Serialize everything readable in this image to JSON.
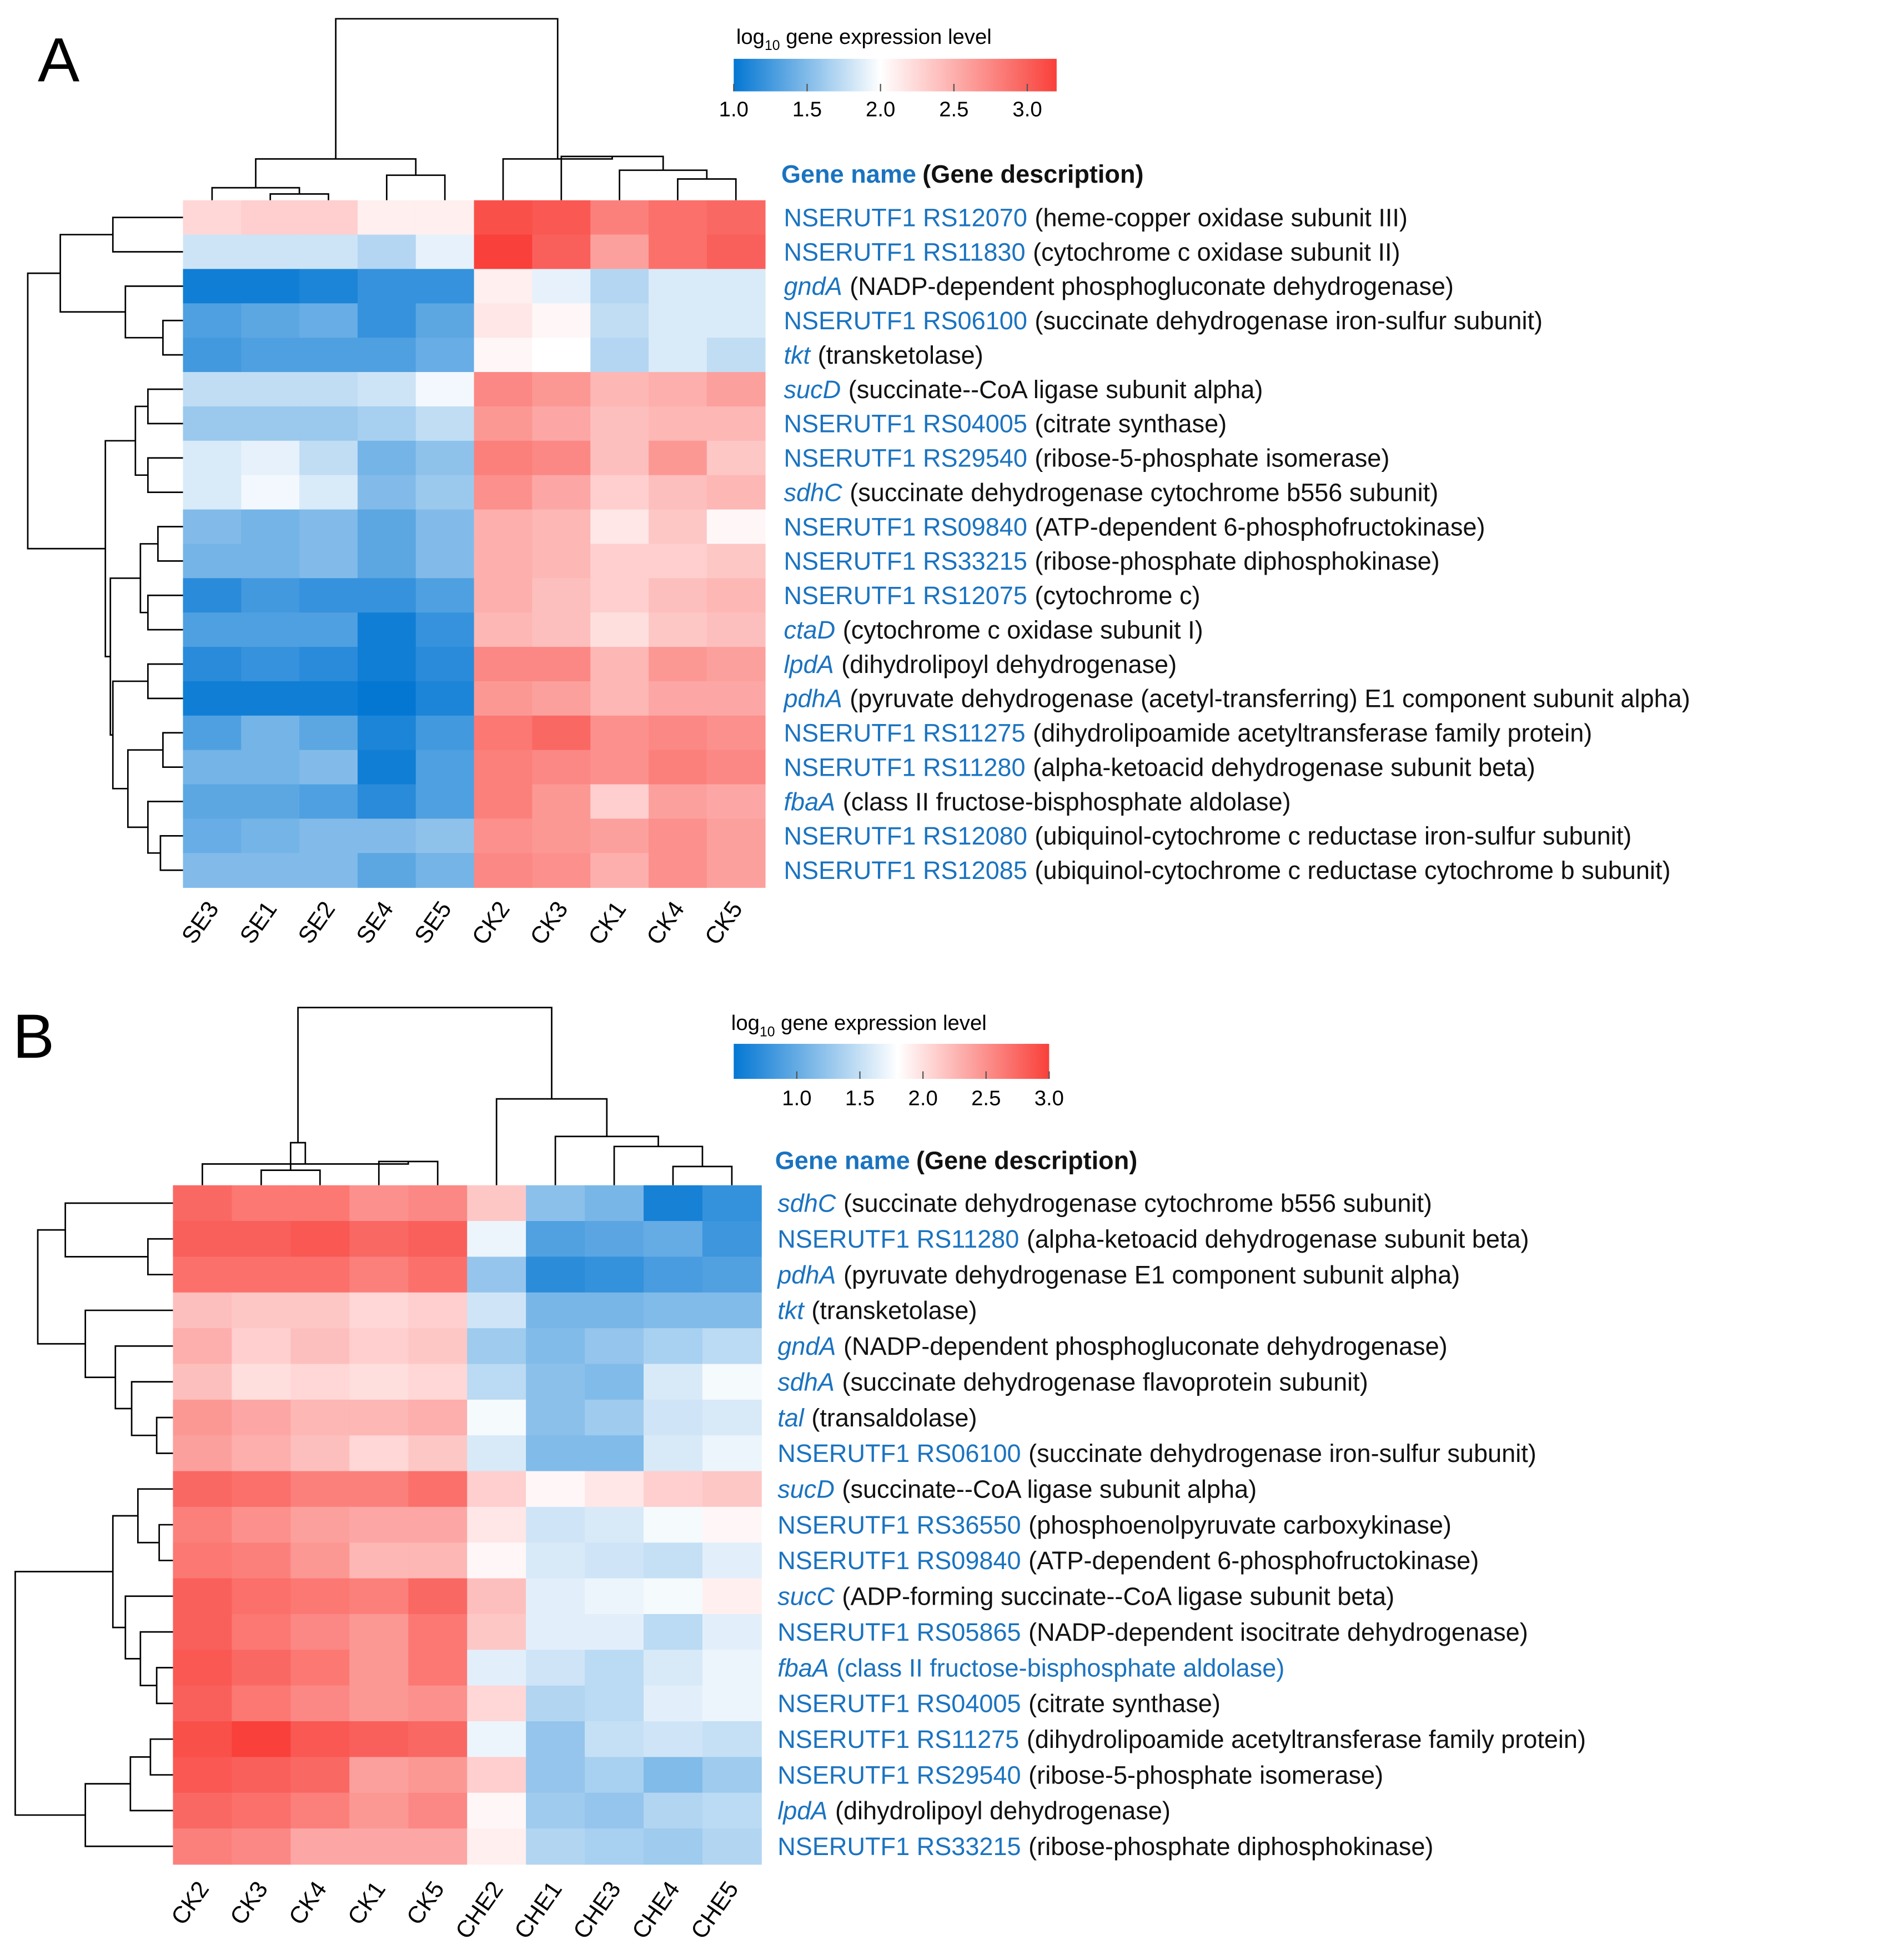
{
  "colors": {
    "low": "#0477d3",
    "mid": "#ffffff",
    "high": "#f9403a",
    "gene_name": "#1a73c0",
    "description": "#111111",
    "tree": "#000000"
  },
  "chart_data": [
    {
      "type": "heatmap",
      "panel_label": "A",
      "legend_title": "log10 gene expression level",
      "legend_title_parts": {
        "base": "log",
        "sub": "10",
        "rest": " gene expression level"
      },
      "legend_range": [
        1.0,
        3.2
      ],
      "legend_mid": 2.0,
      "legend_ticks": [
        1.0,
        1.5,
        2.0,
        2.5,
        3.0
      ],
      "legend_tick_labels": [
        "1.0",
        "1.5",
        "2.0",
        "2.5",
        "3.0"
      ],
      "header": {
        "name": "Gene name",
        "desc": "(Gene description)"
      },
      "columns": [
        "SE3",
        "SE1",
        "SE2",
        "SE4",
        "SE5",
        "CK2",
        "CK3",
        "CK1",
        "CK4",
        "CK5"
      ],
      "rows": [
        {
          "name": "NSERUTF1 RS12070",
          "desc": "(heme-copper oxidase subunit III)",
          "italic": false
        },
        {
          "name": "NSERUTF1 RS11830",
          "desc": "(cytochrome c oxidase subunit II)",
          "italic": false
        },
        {
          "name": "gndA",
          "desc": "(NADP-dependent phosphogluconate dehydrogenase)",
          "italic": true
        },
        {
          "name": "NSERUTF1 RS06100",
          "desc": "(succinate dehydrogenase iron-sulfur subunit)",
          "italic": false
        },
        {
          "name": "tkt",
          "desc": "(transketolase)",
          "italic": true
        },
        {
          "name": "sucD",
          "desc": "(succinate--CoA ligase subunit alpha)",
          "italic": true
        },
        {
          "name": "NSERUTF1 RS04005",
          "desc": "(citrate synthase)",
          "italic": false
        },
        {
          "name": "NSERUTF1 RS29540",
          "desc": "(ribose-5-phosphate isomerase)",
          "italic": false
        },
        {
          "name": "sdhC",
          "desc": "(succinate dehydrogenase cytochrome b556 subunit)",
          "italic": true
        },
        {
          "name": "NSERUTF1 RS09840",
          "desc": "(ATP-dependent 6-phosphofructokinase)",
          "italic": false
        },
        {
          "name": "NSERUTF1 RS33215",
          "desc": "(ribose-phosphate diphosphokinase)",
          "italic": false
        },
        {
          "name": "NSERUTF1 RS12075",
          "desc": "(cytochrome c)",
          "italic": false
        },
        {
          "name": "ctaD",
          "desc": "(cytochrome c oxidase subunit I)",
          "italic": true
        },
        {
          "name": "lpdA",
          "desc": "(dihydrolipoyl dehydrogenase)",
          "italic": true
        },
        {
          "name": "pdhA",
          "desc": "(pyruvate dehydrogenase (acetyl-transferring) E1 component subunit alpha)",
          "italic": true
        },
        {
          "name": "NSERUTF1 RS11275",
          "desc": "(dihydrolipoamide acetyltransferase family protein)",
          "italic": false
        },
        {
          "name": "NSERUTF1 RS11280",
          "desc": "(alpha-ketoacid dehydrogenase subunit beta)",
          "italic": false
        },
        {
          "name": "fbaA",
          "desc": "(class II fructose-bisphosphate aldolase)",
          "italic": true
        },
        {
          "name": "NSERUTF1 RS12080",
          "desc": "(ubiquinol-cytochrome c reductase iron-sulfur subunit)",
          "italic": false
        },
        {
          "name": "NSERUTF1 RS12085",
          "desc": "(ubiquinol-cytochrome c reductase cytochrome b subunit)",
          "italic": false
        }
      ],
      "values": [
        [
          2.25,
          2.3,
          2.3,
          2.1,
          2.1,
          3.1,
          3.05,
          2.8,
          2.9,
          2.95
        ],
        [
          1.8,
          1.8,
          1.8,
          1.7,
          1.9,
          3.2,
          3.0,
          2.6,
          2.9,
          3.0
        ],
        [
          1.05,
          1.05,
          1.1,
          1.2,
          1.2,
          2.1,
          1.9,
          1.7,
          1.85,
          1.85
        ],
        [
          1.3,
          1.35,
          1.4,
          1.2,
          1.35,
          2.15,
          2.05,
          1.75,
          1.85,
          1.85
        ],
        [
          1.25,
          1.3,
          1.3,
          1.3,
          1.4,
          2.05,
          2.0,
          1.7,
          1.85,
          1.75
        ],
        [
          1.75,
          1.75,
          1.75,
          1.8,
          1.95,
          2.75,
          2.65,
          2.45,
          2.5,
          2.6
        ],
        [
          1.6,
          1.6,
          1.6,
          1.65,
          1.75,
          2.65,
          2.55,
          2.4,
          2.45,
          2.45
        ],
        [
          1.85,
          1.9,
          1.75,
          1.45,
          1.55,
          2.8,
          2.75,
          2.4,
          2.65,
          2.35
        ],
        [
          1.85,
          1.95,
          1.85,
          1.5,
          1.6,
          2.7,
          2.55,
          2.3,
          2.4,
          2.45
        ],
        [
          1.5,
          1.45,
          1.5,
          1.35,
          1.5,
          2.5,
          2.45,
          2.15,
          2.35,
          2.05
        ],
        [
          1.45,
          1.45,
          1.5,
          1.35,
          1.5,
          2.5,
          2.45,
          2.3,
          2.3,
          2.35
        ],
        [
          1.15,
          1.25,
          1.2,
          1.2,
          1.3,
          2.5,
          2.4,
          2.3,
          2.4,
          2.45
        ],
        [
          1.3,
          1.3,
          1.3,
          1.05,
          1.2,
          2.45,
          2.4,
          2.2,
          2.35,
          2.4
        ],
        [
          1.15,
          1.2,
          1.15,
          1.05,
          1.15,
          2.75,
          2.75,
          2.45,
          2.65,
          2.6
        ],
        [
          1.05,
          1.05,
          1.05,
          0.95,
          1.1,
          2.65,
          2.6,
          2.45,
          2.55,
          2.55
        ],
        [
          1.3,
          1.45,
          1.35,
          1.1,
          1.25,
          2.85,
          2.95,
          2.7,
          2.75,
          2.7
        ],
        [
          1.45,
          1.45,
          1.5,
          1.05,
          1.3,
          2.8,
          2.75,
          2.7,
          2.8,
          2.75
        ],
        [
          1.35,
          1.35,
          1.3,
          1.15,
          1.3,
          2.8,
          2.65,
          2.3,
          2.6,
          2.55
        ],
        [
          1.4,
          1.45,
          1.5,
          1.5,
          1.55,
          2.7,
          2.65,
          2.6,
          2.7,
          2.6
        ],
        [
          1.5,
          1.5,
          1.5,
          1.35,
          1.45,
          2.75,
          2.7,
          2.5,
          2.7,
          2.6
        ]
      ]
    },
    {
      "type": "heatmap",
      "panel_label": "B",
      "legend_title": "log10 gene expression level",
      "legend_title_parts": {
        "base": "log",
        "sub": "10",
        "rest": " gene expression level"
      },
      "legend_range": [
        0.5,
        3.0
      ],
      "legend_mid": 1.8,
      "legend_ticks": [
        1.0,
        1.5,
        2.0,
        2.5,
        3.0
      ],
      "legend_tick_labels": [
        "1.0",
        "1.5",
        "2.0",
        "2.5",
        "3.0"
      ],
      "header": {
        "name": "Gene name",
        "desc": "(Gene description)"
      },
      "columns": [
        "CK2",
        "CK3",
        "CK4",
        "CK1",
        "CK5",
        "CHE2",
        "CHE1",
        "CHE3",
        "CHE4",
        "CHE5"
      ],
      "rows": [
        {
          "name": "sdhC",
          "desc": "(succinate dehydrogenase cytochrome b556 subunit)",
          "italic": true
        },
        {
          "name": "NSERUTF1 RS11280",
          "desc": "(alpha-ketoacid dehydrogenase subunit beta)",
          "italic": false
        },
        {
          "name": "pdhA",
          "desc": "(pyruvate dehydrogenase E1 component subunit alpha)",
          "italic": true
        },
        {
          "name": "tkt",
          "desc": "(transketolase)",
          "italic": true
        },
        {
          "name": "gndA",
          "desc": "(NADP-dependent phosphogluconate dehydrogenase)",
          "italic": true
        },
        {
          "name": "sdhA",
          "desc": "(succinate dehydrogenase flavoprotein subunit)",
          "italic": true
        },
        {
          "name": "tal",
          "desc": "(transaldolase)",
          "italic": true
        },
        {
          "name": "NSERUTF1 RS06100",
          "desc": "(succinate dehydrogenase iron-sulfur subunit)",
          "italic": false
        },
        {
          "name": "sucD",
          "desc": "(succinate--CoA ligase subunit alpha)",
          "italic": true
        },
        {
          "name": "NSERUTF1 RS36550",
          "desc": "(phosphoenolpyruvate carboxykinase)",
          "italic": false
        },
        {
          "name": "NSERUTF1 RS09840",
          "desc": "(ATP-dependent 6-phosphofructokinase)",
          "italic": false
        },
        {
          "name": "sucC",
          "desc": "(ADP-forming succinate--CoA ligase subunit beta)",
          "italic": true
        },
        {
          "name": "NSERUTF1 RS05865",
          "desc": "(NADP-dependent isocitrate dehydrogenase)",
          "italic": false
        },
        {
          "name": "fbaA",
          "desc": "(class II fructose-bisphosphate aldolase)",
          "italic": true,
          "desc_blue": true
        },
        {
          "name": "NSERUTF1 RS04005",
          "desc": "(citrate synthase)",
          "italic": false
        },
        {
          "name": "NSERUTF1 RS11275",
          "desc": "(dihydrolipoamide acetyltransferase family protein)",
          "italic": false
        },
        {
          "name": "NSERUTF1 RS29540",
          "desc": "(ribose-5-phosphate isomerase)",
          "italic": false
        },
        {
          "name": "lpdA",
          "desc": "(dihydrolipoyl dehydrogenase)",
          "italic": true
        },
        {
          "name": "NSERUTF1 RS33215",
          "desc": "(ribose-phosphate diphosphokinase)",
          "italic": false
        }
      ],
      "values": [
        [
          2.75,
          2.65,
          2.65,
          2.5,
          2.55,
          2.15,
          1.2,
          1.1,
          0.6,
          0.75
        ],
        [
          2.8,
          2.8,
          2.85,
          2.75,
          2.8,
          1.7,
          0.9,
          0.95,
          1.0,
          0.8
        ],
        [
          2.7,
          2.7,
          2.7,
          2.6,
          2.7,
          1.25,
          0.7,
          0.75,
          0.85,
          0.9
        ],
        [
          2.2,
          2.15,
          2.15,
          2.05,
          2.1,
          1.55,
          1.1,
          1.1,
          1.15,
          1.15
        ],
        [
          2.3,
          2.1,
          2.2,
          2.1,
          2.15,
          1.3,
          1.15,
          1.25,
          1.35,
          1.45
        ],
        [
          2.2,
          2.0,
          2.05,
          2.0,
          2.05,
          1.45,
          1.2,
          1.15,
          1.6,
          1.75
        ],
        [
          2.45,
          2.35,
          2.25,
          2.25,
          2.3,
          1.75,
          1.2,
          1.3,
          1.55,
          1.6
        ],
        [
          2.4,
          2.3,
          2.2,
          2.05,
          2.15,
          1.6,
          1.15,
          1.15,
          1.6,
          1.7
        ],
        [
          2.75,
          2.7,
          2.6,
          2.6,
          2.7,
          2.1,
          1.85,
          1.95,
          2.1,
          2.15
        ],
        [
          2.6,
          2.5,
          2.4,
          2.35,
          2.35,
          1.95,
          1.55,
          1.6,
          1.75,
          1.85
        ],
        [
          2.65,
          2.6,
          2.45,
          2.25,
          2.25,
          1.85,
          1.6,
          1.55,
          1.5,
          1.65
        ],
        [
          2.8,
          2.7,
          2.65,
          2.6,
          2.75,
          2.2,
          1.65,
          1.7,
          1.75,
          1.9
        ],
        [
          2.8,
          2.65,
          2.55,
          2.45,
          2.65,
          2.15,
          1.65,
          1.65,
          1.45,
          1.65
        ],
        [
          2.85,
          2.75,
          2.65,
          2.45,
          2.65,
          1.65,
          1.55,
          1.45,
          1.6,
          1.7
        ],
        [
          2.8,
          2.65,
          2.55,
          2.45,
          2.5,
          2.05,
          1.4,
          1.45,
          1.65,
          1.7
        ],
        [
          2.9,
          3.0,
          2.85,
          2.8,
          2.75,
          1.7,
          1.25,
          1.5,
          1.55,
          1.5
        ],
        [
          2.85,
          2.8,
          2.75,
          2.4,
          2.45,
          2.1,
          1.25,
          1.35,
          1.15,
          1.3
        ],
        [
          2.75,
          2.7,
          2.6,
          2.45,
          2.55,
          1.85,
          1.3,
          1.25,
          1.4,
          1.45
        ],
        [
          2.6,
          2.55,
          2.35,
          2.35,
          2.35,
          1.9,
          1.4,
          1.35,
          1.3,
          1.4
        ]
      ]
    }
  ]
}
